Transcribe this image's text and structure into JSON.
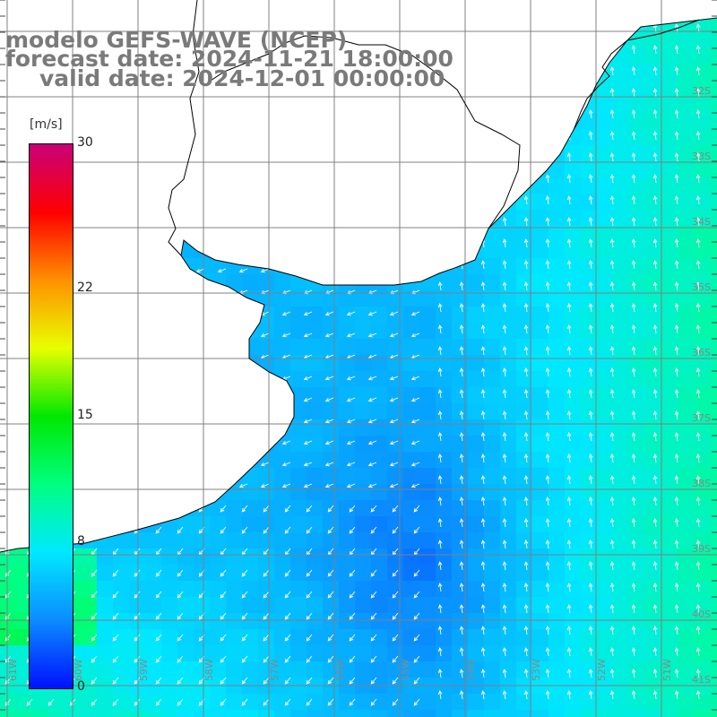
{
  "title": {
    "line1": "modelo GEFS-WAVE (NCEP)",
    "line2": "forecast date: 2024-11-21 18:00:00",
    "line3": "valid date: 2024-12-01 00:00:00",
    "color": "#7a7a7a"
  },
  "legend": {
    "unit": "[m/s]",
    "ticks": [
      {
        "label": "30",
        "value": 30
      },
      {
        "label": "22",
        "value": 22
      },
      {
        "label": "15",
        "value": 15
      },
      {
        "label": "8",
        "value": 8
      },
      {
        "label": "0",
        "value": 0
      }
    ],
    "min": 0,
    "max": 30,
    "colors": [
      "#0010ff",
      "#0a8cff",
      "#00e8ff",
      "#00ff80",
      "#00e800",
      "#e8ff00",
      "#ff9000",
      "#ff0000",
      "#c80078"
    ]
  },
  "map": {
    "lon_labels": [
      "61W",
      "60W",
      "59W",
      "58W",
      "57W",
      "56W",
      "55W",
      "54W",
      "53W",
      "52W",
      "51W"
    ],
    "lat_labels": [
      "32S",
      "33S",
      "34S",
      "35S",
      "36S",
      "37S",
      "38S",
      "39S",
      "40S",
      "41S"
    ],
    "grid_color": "#808080",
    "land_color": "#ffffff",
    "coast_color": "#000000"
  }
}
